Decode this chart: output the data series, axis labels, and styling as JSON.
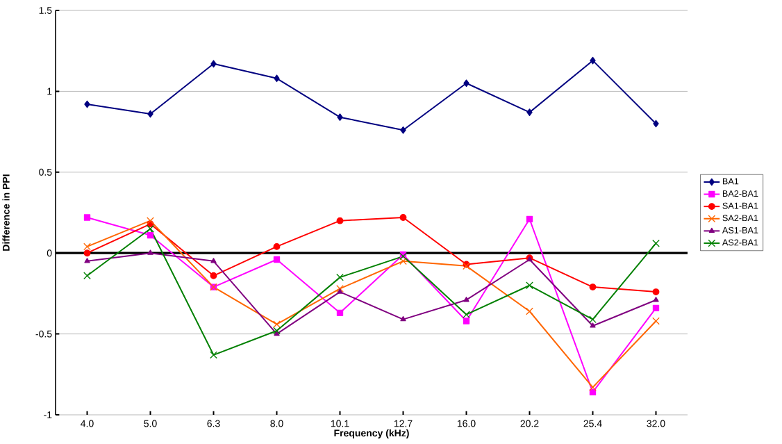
{
  "chart_data": {
    "type": "line",
    "xlabel": "Frequency (kHz)",
    "ylabel": "Difference in PPI",
    "categories": [
      "4.0",
      "5.0",
      "6.3",
      "8.0",
      "10.1",
      "12.7",
      "16.0",
      "20.2",
      "25.4",
      "32.0"
    ],
    "ylim": [
      -1,
      1.5
    ],
    "yticks": [
      -1,
      -0.5,
      0,
      0.5,
      1,
      1.5
    ],
    "grid": "y",
    "legend": "right",
    "ref_lines": [
      {
        "axis": "y",
        "value": 0,
        "color": "#000000"
      }
    ],
    "series": [
      {
        "name": "BA1",
        "color": "#000080",
        "marker": "diamond",
        "values": [
          0.92,
          0.86,
          1.17,
          1.08,
          0.84,
          0.76,
          1.05,
          0.87,
          1.19,
          0.8
        ]
      },
      {
        "name": "BA2-BA1",
        "color": "#ff00ff",
        "marker": "square",
        "values": [
          0.22,
          0.11,
          -0.21,
          -0.04,
          -0.37,
          -0.01,
          -0.42,
          0.21,
          -0.86,
          -0.34
        ]
      },
      {
        "name": "SA1-BA1",
        "color": "#ff0000",
        "marker": "circle",
        "values": [
          0.0,
          0.18,
          -0.14,
          0.04,
          0.2,
          0.22,
          -0.07,
          -0.03,
          -0.21,
          -0.24
        ]
      },
      {
        "name": "SA2-BA1",
        "color": "#ff6600",
        "marker": "cross",
        "values": [
          0.04,
          0.2,
          -0.21,
          -0.44,
          -0.22,
          -0.05,
          -0.08,
          -0.36,
          -0.83,
          -0.42
        ]
      },
      {
        "name": "AS1-BA1",
        "color": "#800080",
        "marker": "triangle",
        "values": [
          -0.05,
          0.0,
          -0.05,
          -0.5,
          -0.24,
          -0.41,
          -0.29,
          -0.04,
          -0.45,
          -0.29
        ]
      },
      {
        "name": "AS2-BA1",
        "color": "#008000",
        "marker": "cross",
        "values": [
          -0.14,
          0.15,
          -0.63,
          -0.48,
          -0.15,
          -0.02,
          -0.38,
          -0.2,
          -0.41,
          0.06
        ]
      }
    ]
  }
}
